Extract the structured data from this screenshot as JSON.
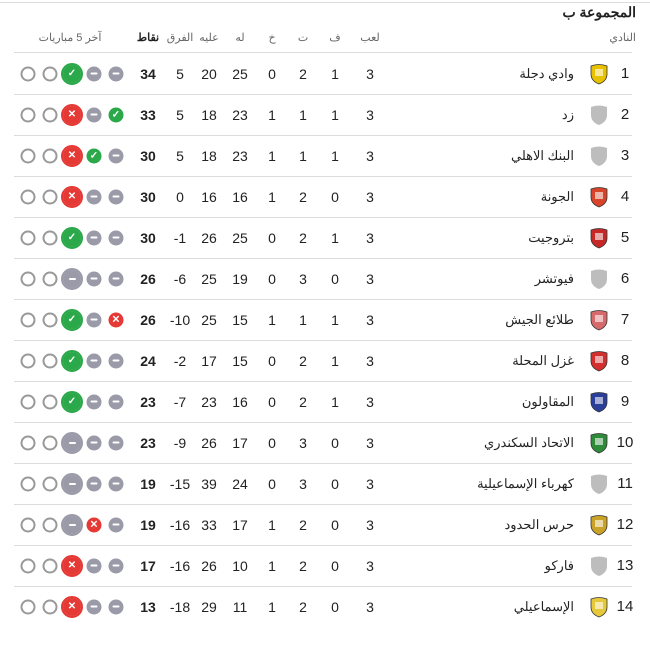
{
  "title": "المجموعة ب",
  "headers": {
    "team": "النادي",
    "played": "لعب",
    "won": "ف",
    "drawn": "ت",
    "lost": "خ",
    "gf": "له",
    "ga": "عليه",
    "diff": "الفرق",
    "pts": "نقاط",
    "form": "آخر 5 مباريات"
  },
  "colors": {
    "win": "#2aa84a",
    "loss": "#e53935",
    "draw": "#9a9aa8"
  },
  "rows": [
    {
      "rank": "1",
      "team": "وادي دجلة",
      "logo": "wadi-degla-crest-icon",
      "logo_color": "#e8c200",
      "played": "3",
      "won": "1",
      "drawn": "2",
      "lost": "0",
      "gf": "25",
      "ga": "20",
      "diff": "5",
      "pts": "34",
      "form": [
        "none",
        "none",
        "W",
        "D",
        "D"
      ]
    },
    {
      "rank": "2",
      "team": "زد",
      "logo": "placeholder-shield-icon",
      "logo_color": "#bdbdbd",
      "played": "3",
      "won": "1",
      "drawn": "1",
      "lost": "1",
      "gf": "23",
      "ga": "18",
      "diff": "5",
      "pts": "33",
      "form": [
        "none",
        "none",
        "L",
        "D",
        "W"
      ]
    },
    {
      "rank": "3",
      "team": "البنك الاهلي",
      "logo": "placeholder-shield-icon",
      "logo_color": "#bdbdbd",
      "played": "3",
      "won": "1",
      "drawn": "1",
      "lost": "1",
      "gf": "23",
      "ga": "18",
      "diff": "5",
      "pts": "30",
      "form": [
        "none",
        "none",
        "L",
        "W",
        "D"
      ]
    },
    {
      "rank": "4",
      "team": "الجونة",
      "logo": "el-gouna-crest-icon",
      "logo_color": "#d8442a",
      "played": "3",
      "won": "0",
      "drawn": "2",
      "lost": "1",
      "gf": "16",
      "ga": "16",
      "diff": "0",
      "pts": "30",
      "form": [
        "none",
        "none",
        "L",
        "D",
        "D"
      ]
    },
    {
      "rank": "5",
      "team": "بتروجيت",
      "logo": "petrojet-crest-icon",
      "logo_color": "#c62828",
      "played": "3",
      "won": "1",
      "drawn": "2",
      "lost": "0",
      "gf": "25",
      "ga": "26",
      "diff": "-1",
      "pts": "30",
      "form": [
        "none",
        "none",
        "W",
        "D",
        "D"
      ]
    },
    {
      "rank": "6",
      "team": "فيوتشر",
      "logo": "placeholder-shield-icon",
      "logo_color": "#bdbdbd",
      "played": "3",
      "won": "0",
      "drawn": "3",
      "lost": "0",
      "gf": "19",
      "ga": "25",
      "diff": "-6",
      "pts": "26",
      "form": [
        "none",
        "none",
        "D",
        "D",
        "D"
      ]
    },
    {
      "rank": "7",
      "team": "طلائع الجيش",
      "logo": "talaea-el-gaish-crest-icon",
      "logo_color": "#d66a6a",
      "played": "3",
      "won": "1",
      "drawn": "1",
      "lost": "1",
      "gf": "15",
      "ga": "25",
      "diff": "-10",
      "pts": "26",
      "form": [
        "none",
        "none",
        "W",
        "D",
        "L"
      ]
    },
    {
      "rank": "8",
      "team": "غزل المحلة",
      "logo": "ghazl-el-mahalla-crest-icon",
      "logo_color": "#d32f2f",
      "played": "3",
      "won": "1",
      "drawn": "2",
      "lost": "0",
      "gf": "15",
      "ga": "17",
      "diff": "-2",
      "pts": "24",
      "form": [
        "none",
        "none",
        "W",
        "D",
        "D"
      ]
    },
    {
      "rank": "9",
      "team": "المقاولون",
      "logo": "al-mokawloon-crest-icon",
      "logo_color": "#2a3f9a",
      "played": "3",
      "won": "1",
      "drawn": "2",
      "lost": "0",
      "gf": "16",
      "ga": "23",
      "diff": "-7",
      "pts": "23",
      "form": [
        "none",
        "none",
        "W",
        "D",
        "D"
      ]
    },
    {
      "rank": "10",
      "team": "الاتحاد السكندري",
      "logo": "al-ittihad-crest-icon",
      "logo_color": "#2e8b3a",
      "played": "3",
      "won": "0",
      "drawn": "3",
      "lost": "0",
      "gf": "17",
      "ga": "26",
      "diff": "-9",
      "pts": "23",
      "form": [
        "none",
        "none",
        "D",
        "D",
        "D"
      ]
    },
    {
      "rank": "11",
      "team": "كهرباء الإسماعيلية",
      "logo": "placeholder-shield-icon",
      "logo_color": "#bdbdbd",
      "played": "3",
      "won": "0",
      "drawn": "3",
      "lost": "0",
      "gf": "24",
      "ga": "39",
      "diff": "-15",
      "pts": "19",
      "form": [
        "none",
        "none",
        "D",
        "D",
        "D"
      ]
    },
    {
      "rank": "12",
      "team": "حرس الحدود",
      "logo": "haras-el-hodoud-crest-icon",
      "logo_color": "#c9a227",
      "played": "3",
      "won": "0",
      "drawn": "2",
      "lost": "1",
      "gf": "17",
      "ga": "33",
      "diff": "-16",
      "pts": "19",
      "form": [
        "none",
        "none",
        "D",
        "L",
        "D"
      ]
    },
    {
      "rank": "13",
      "team": "فاركو",
      "logo": "placeholder-shield-icon",
      "logo_color": "#bdbdbd",
      "played": "3",
      "won": "0",
      "drawn": "2",
      "lost": "1",
      "gf": "10",
      "ga": "26",
      "diff": "-16",
      "pts": "17",
      "form": [
        "none",
        "none",
        "L",
        "D",
        "D"
      ]
    },
    {
      "rank": "14",
      "team": "الإسماعيلي",
      "logo": "ismaily-crest-icon",
      "logo_color": "#e6c93a",
      "played": "3",
      "won": "0",
      "drawn": "2",
      "lost": "1",
      "gf": "11",
      "ga": "29",
      "diff": "-18",
      "pts": "13",
      "form": [
        "none",
        "none",
        "L",
        "D",
        "D"
      ]
    }
  ]
}
